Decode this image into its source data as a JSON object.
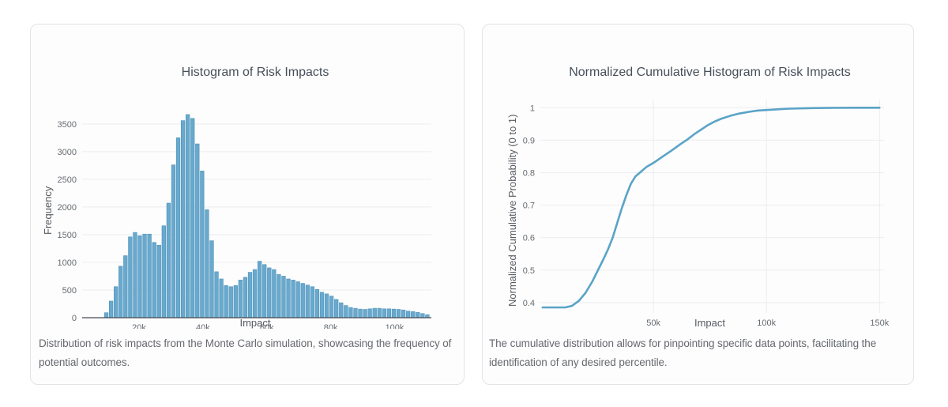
{
  "page": {
    "background": "#ffffff"
  },
  "chart_data": [
    {
      "type": "bar",
      "title": "Histogram of Risk Impacts",
      "xlabel": "Impact",
      "ylabel": "Frequency",
      "caption": "Distribution of risk impacts from the Monte Carlo simulation, showcasing the frequency of potential outcomes.",
      "bin_start": 9000,
      "bin_width": 1500,
      "values": [
        90,
        300,
        560,
        930,
        1120,
        1460,
        1540,
        1480,
        1510,
        1510,
        1360,
        1310,
        1660,
        2070,
        2760,
        3250,
        3560,
        3670,
        3600,
        3140,
        2650,
        1950,
        1390,
        830,
        700,
        580,
        560,
        580,
        680,
        730,
        820,
        870,
        1020,
        960,
        900,
        870,
        780,
        750,
        700,
        680,
        650,
        620,
        590,
        560,
        510,
        460,
        430,
        390,
        330,
        270,
        220,
        185,
        170,
        155,
        150,
        160,
        170,
        170,
        160,
        160,
        155,
        150,
        140,
        120,
        110,
        95,
        75,
        55
      ],
      "x_range": [
        2200,
        111500
      ],
      "y_range": [
        0,
        3940
      ],
      "x_ticks": [
        {
          "value": 20000,
          "label": "20k"
        },
        {
          "value": 40000,
          "label": "40k"
        },
        {
          "value": 60000,
          "label": "60k"
        },
        {
          "value": 80000,
          "label": "80k"
        },
        {
          "value": 100000,
          "label": "100k"
        }
      ],
      "y_ticks": [
        {
          "value": 0,
          "label": "0"
        },
        {
          "value": 500,
          "label": "500"
        },
        {
          "value": 1000,
          "label": "1000"
        },
        {
          "value": 1500,
          "label": "1500"
        },
        {
          "value": 2000,
          "label": "2000"
        },
        {
          "value": 2500,
          "label": "2500"
        },
        {
          "value": 3000,
          "label": "3000"
        },
        {
          "value": 3500,
          "label": "3500"
        }
      ],
      "grid": "horizontal",
      "legend": "none",
      "bar_color": "#69a9cd",
      "bar_edge_color": "#4e92ba",
      "zero_line_color": "#444a52",
      "grid_color": "#ebedf0",
      "tick_color": "#666b70"
    },
    {
      "type": "line",
      "title": "Normalized Cumulative Histogram of Risk Impacts",
      "xlabel": "Impact",
      "ylabel": "Normalized Cumulative Probability (0 to 1)",
      "caption": "The cumulative distribution allows for pinpointing specific data points, facilitating the identification of any desired percentile.",
      "points": [
        [
          1000,
          0.385
        ],
        [
          6000,
          0.385
        ],
        [
          11000,
          0.385
        ],
        [
          14000,
          0.39
        ],
        [
          17000,
          0.405
        ],
        [
          20000,
          0.43
        ],
        [
          23000,
          0.465
        ],
        [
          25500,
          0.5
        ],
        [
          28000,
          0.535
        ],
        [
          30000,
          0.565
        ],
        [
          32000,
          0.6
        ],
        [
          34000,
          0.645
        ],
        [
          36000,
          0.69
        ],
        [
          38000,
          0.73
        ],
        [
          40000,
          0.765
        ],
        [
          42000,
          0.788
        ],
        [
          44000,
          0.8
        ],
        [
          47000,
          0.818
        ],
        [
          50000,
          0.83
        ],
        [
          54000,
          0.849
        ],
        [
          58000,
          0.868
        ],
        [
          62000,
          0.888
        ],
        [
          65000,
          0.902
        ],
        [
          68000,
          0.918
        ],
        [
          71000,
          0.932
        ],
        [
          74000,
          0.946
        ],
        [
          77000,
          0.957
        ],
        [
          80000,
          0.966
        ],
        [
          84000,
          0.975
        ],
        [
          88000,
          0.982
        ],
        [
          92000,
          0.987
        ],
        [
          96000,
          0.991
        ],
        [
          100000,
          0.993
        ],
        [
          105000,
          0.995
        ],
        [
          110000,
          0.997
        ],
        [
          116000,
          0.998
        ],
        [
          122000,
          0.999
        ],
        [
          130000,
          0.9995
        ],
        [
          140000,
          1.0
        ],
        [
          150000,
          1.0
        ]
      ],
      "x_range": [
        0,
        152000
      ],
      "y_range": [
        0.368,
        1.025
      ],
      "x_ticks": [
        {
          "value": 50000,
          "label": "50k"
        },
        {
          "value": 100000,
          "label": "100k"
        },
        {
          "value": 150000,
          "label": "150k"
        }
      ],
      "y_ticks": [
        {
          "value": 0.4,
          "label": "0.4"
        },
        {
          "value": 0.5,
          "label": "0.5"
        },
        {
          "value": 0.6,
          "label": "0.6"
        },
        {
          "value": 0.7,
          "label": "0.7"
        },
        {
          "value": 0.8,
          "label": "0.8"
        },
        {
          "value": 0.9,
          "label": "0.9"
        },
        {
          "value": 1.0,
          "label": "1"
        }
      ],
      "grid": "both",
      "legend": "none",
      "line_color": "#5aa3c7",
      "grid_color": "#ebedf0",
      "tick_color": "#666b70"
    }
  ]
}
